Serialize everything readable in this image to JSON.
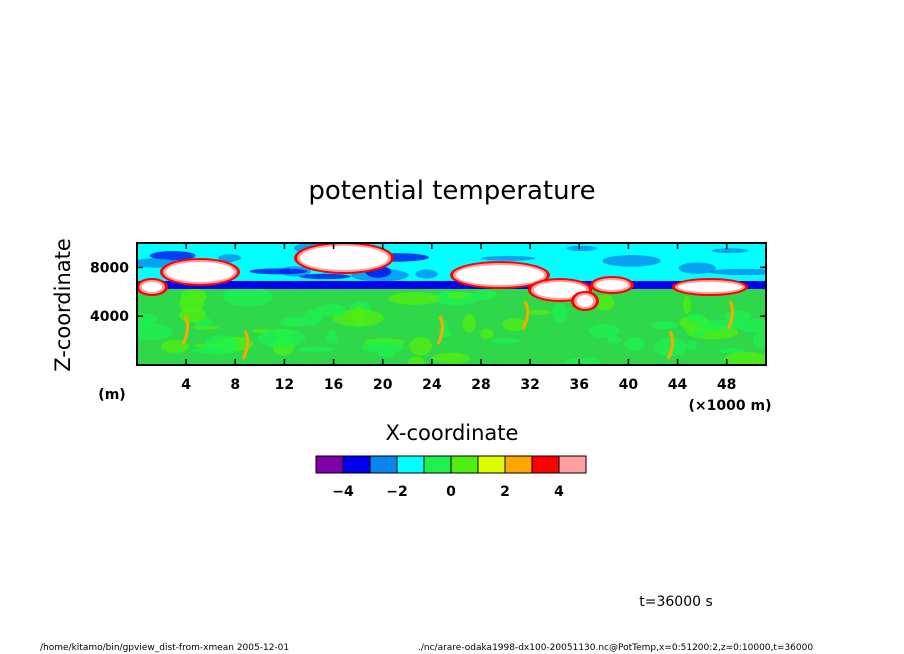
{
  "chart_data": {
    "type": "heatmap",
    "title": "potential temperature",
    "xlabel": "X-coordinate",
    "ylabel": "Z-coordinate",
    "x_unit": "(×1000 m)",
    "y_unit": "(m)",
    "xlim": [
      0,
      51.2
    ],
    "ylim": [
      0,
      10000
    ],
    "x_ticks": [
      4,
      8,
      12,
      16,
      20,
      24,
      28,
      32,
      36,
      40,
      44,
      48
    ],
    "y_ticks": [
      4000,
      8000
    ],
    "time_label": "t=36000 s",
    "colorbar": {
      "levels": [
        -5,
        -4,
        -3,
        -2,
        -1,
        0,
        1,
        2,
        3,
        4,
        5
      ],
      "colors": [
        "#7f00aa",
        "#0000ee",
        "#0a84ee",
        "#00ffff",
        "#1ef050",
        "#50ee12",
        "#dcff00",
        "#ffa500",
        "#ff0000",
        "#ffa0a0"
      ],
      "tick_labels": [
        "−4",
        "−2",
        "0",
        "2",
        "4"
      ]
    },
    "fields": {
      "background_color": "#2ed84a",
      "upper_layer_color": "#00ffff"
    }
  },
  "footer": {
    "left": "/home/kitamo/bin/gpview_dist-from-xmean   2005-12-01",
    "right": "./nc/arare-odaka1998-dx100-20051130.nc@PotTemp,x=0:51200:2,z=0:10000,t=36000"
  }
}
